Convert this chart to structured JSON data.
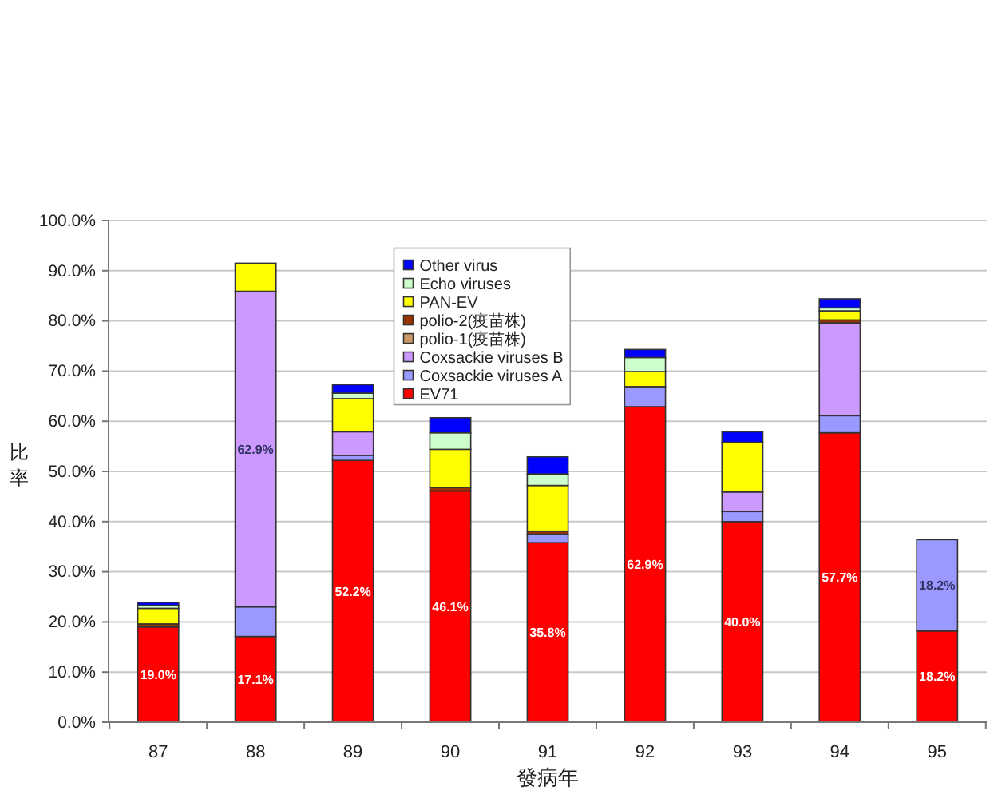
{
  "chart_data": {
    "type": "bar",
    "stacked": true,
    "xlabel": "發病年",
    "ylabel": "比率",
    "categories": [
      "87",
      "88",
      "89",
      "90",
      "91",
      "92",
      "93",
      "94",
      "95"
    ],
    "ylim": [
      0,
      100
    ],
    "yticks": [
      {
        "value": 0,
        "label": "0.0%"
      },
      {
        "value": 10,
        "label": "10.0%"
      },
      {
        "value": 20,
        "label": "20.0%"
      },
      {
        "value": 30,
        "label": "30.0%"
      },
      {
        "value": 40,
        "label": "40.0%"
      },
      {
        "value": 50,
        "label": "50.0%"
      },
      {
        "value": 60,
        "label": "60.0%"
      },
      {
        "value": 70,
        "label": "70.0%"
      },
      {
        "value": 80,
        "label": "80.0%"
      },
      {
        "value": 90,
        "label": "90.0%"
      },
      {
        "value": 100,
        "label": "100.0%"
      }
    ],
    "grid": "y",
    "legend": "top",
    "series": [
      {
        "name": "EV71",
        "color": "#ff0000",
        "values": [
          19.0,
          17.1,
          52.2,
          46.1,
          35.8,
          62.9,
          40.0,
          57.7,
          18.2
        ],
        "value_labels": [
          "19.0%",
          "17.1%",
          "52.2%",
          "46.1%",
          "35.8%",
          "62.9%",
          "40.0%",
          "57.7%",
          "18.2%"
        ]
      },
      {
        "name": "Coxsackie viruses A",
        "color": "#9999ff",
        "values": [
          null,
          5.9,
          1.0,
          null,
          1.7,
          4.0,
          2.0,
          3.4,
          18.2
        ],
        "value_labels": [
          null,
          null,
          null,
          null,
          null,
          null,
          null,
          null,
          "18.2%"
        ]
      },
      {
        "name": "Coxsackie viruses B",
        "color": "#cc99ff",
        "values": [
          null,
          62.9,
          4.7,
          null,
          null,
          null,
          3.9,
          18.5,
          null
        ],
        "value_labels": [
          null,
          "62.9%",
          null,
          null,
          null,
          null,
          null,
          null,
          null
        ]
      },
      {
        "name": "polio-1(疫苗株)",
        "color": "#cc9966",
        "values": [
          null,
          null,
          null,
          null,
          null,
          null,
          null,
          null,
          null
        ]
      },
      {
        "name": "polio-2(疫苗株)",
        "color": "#993300",
        "values": [
          0.6,
          null,
          null,
          0.7,
          0.6,
          null,
          null,
          0.6,
          null
        ]
      },
      {
        "name": "PAN-EV",
        "color": "#ffff00",
        "values": [
          3.1,
          5.6,
          6.6,
          7.6,
          9.1,
          3.0,
          9.9,
          1.8,
          null
        ]
      },
      {
        "name": "Echo viruses",
        "color": "#ccffcc",
        "values": [
          0.6,
          null,
          1.1,
          3.3,
          2.3,
          2.8,
          null,
          0.6,
          null
        ]
      },
      {
        "name": "Other virus",
        "color": "#0000ff",
        "values": [
          0.6,
          null,
          1.7,
          3.0,
          3.4,
          1.6,
          2.1,
          1.8,
          null
        ]
      }
    ]
  }
}
